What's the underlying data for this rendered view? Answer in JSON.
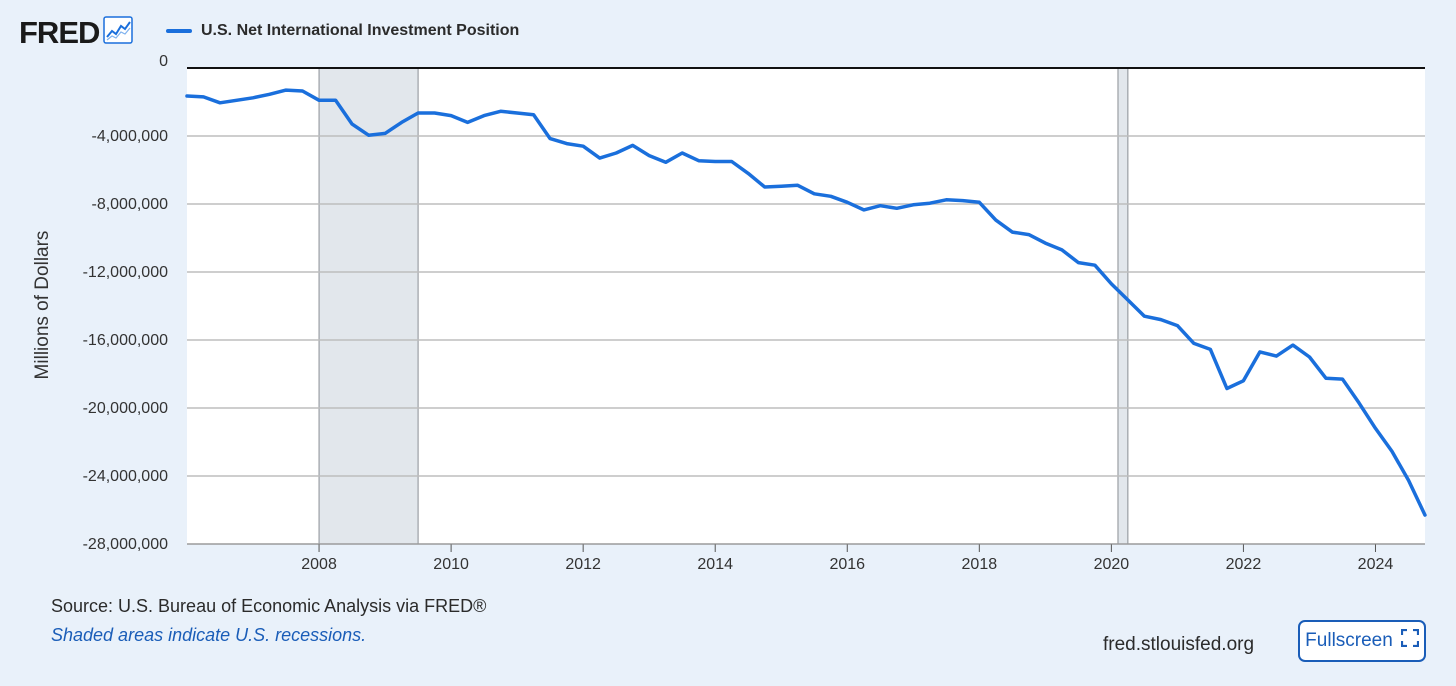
{
  "brand": {
    "logo_text": "FRED",
    "icon": "line-chart-icon"
  },
  "colors": {
    "line": "#1a6fdc",
    "recession_shade": "#e2e7ec",
    "background": "#e9f1fa",
    "plot_bg": "#ffffff",
    "link": "#1a5db8"
  },
  "footer": {
    "source": "Source: U.S. Bureau of Economic Analysis via FRED®",
    "recession_note": "Shaded areas indicate U.S. recessions.",
    "site": "fred.stlouisfed.org",
    "fullscreen_label": "Fullscreen",
    "fullscreen_icon": "expand-icon"
  },
  "chart_data": {
    "type": "line",
    "title": "",
    "xlabel": "",
    "ylabel": "Millions of Dollars",
    "xlim": [
      2006.0,
      2024.75
    ],
    "ylim": [
      -28000000,
      0
    ],
    "x_ticks": [
      2008,
      2010,
      2012,
      2014,
      2016,
      2018,
      2020,
      2022,
      2024
    ],
    "y_ticks": [
      0,
      -4000000,
      -8000000,
      -12000000,
      -16000000,
      -20000000,
      -24000000,
      -28000000
    ],
    "y_tick_labels": [
      "0",
      "-4,000,000",
      "-8,000,000",
      "-12,000,000",
      "-16,000,000",
      "-20,000,000",
      "-24,000,000",
      "-28,000,000"
    ],
    "grid": true,
    "legend": "top-left",
    "recessions": [
      [
        2008.0,
        2009.5
      ],
      [
        2020.1,
        2020.25
      ]
    ],
    "series": [
      {
        "name": "U.S. Net International Investment Position",
        "x": [
          2006.0,
          2006.25,
          2006.5,
          2006.75,
          2007.0,
          2007.25,
          2007.5,
          2007.75,
          2008.0,
          2008.25,
          2008.5,
          2008.75,
          2009.0,
          2009.25,
          2009.5,
          2009.75,
          2010.0,
          2010.25,
          2010.5,
          2010.75,
          2011.0,
          2011.25,
          2011.5,
          2011.75,
          2012.0,
          2012.25,
          2012.5,
          2012.75,
          2013.0,
          2013.25,
          2013.5,
          2013.75,
          2014.0,
          2014.25,
          2014.5,
          2014.75,
          2015.0,
          2015.25,
          2015.5,
          2015.75,
          2016.0,
          2016.25,
          2016.5,
          2016.75,
          2017.0,
          2017.25,
          2017.5,
          2017.75,
          2018.0,
          2018.25,
          2018.5,
          2018.75,
          2019.0,
          2019.25,
          2019.5,
          2019.75,
          2020.0,
          2020.25,
          2020.5,
          2020.75,
          2021.0,
          2021.25,
          2021.5,
          2021.75,
          2022.0,
          2022.25,
          2022.5,
          2022.75,
          2023.0,
          2023.25,
          2023.5,
          2023.75,
          2024.0,
          2024.25,
          2024.5,
          2024.75
        ],
        "values": [
          -1650000,
          -1700000,
          -2050000,
          -1900000,
          -1750000,
          -1550000,
          -1300000,
          -1350000,
          -1900000,
          -1900000,
          -3300000,
          -3950000,
          -3850000,
          -3200000,
          -2650000,
          -2650000,
          -2800000,
          -3200000,
          -2800000,
          -2550000,
          -2650000,
          -2750000,
          -4150000,
          -4450000,
          -4600000,
          -5300000,
          -5000000,
          -4550000,
          -5150000,
          -5550000,
          -5000000,
          -5450000,
          -5500000,
          -5500000,
          -6200000,
          -7000000,
          -6950000,
          -6900000,
          -7400000,
          -7550000,
          -7900000,
          -8350000,
          -8100000,
          -8250000,
          -8050000,
          -7950000,
          -7750000,
          -7800000,
          -7900000,
          -8950000,
          -9650000,
          -9800000,
          -10300000,
          -10700000,
          -11450000,
          -11600000,
          -12700000,
          -13650000,
          -14600000,
          -14800000,
          -15150000,
          -16200000,
          -16550000,
          -18850000,
          -18400000,
          -16700000,
          -16950000,
          -16300000,
          -17000000,
          -18250000,
          -18300000,
          -19700000,
          -21200000,
          -22550000,
          -24250000,
          -26300000
        ]
      }
    ]
  }
}
